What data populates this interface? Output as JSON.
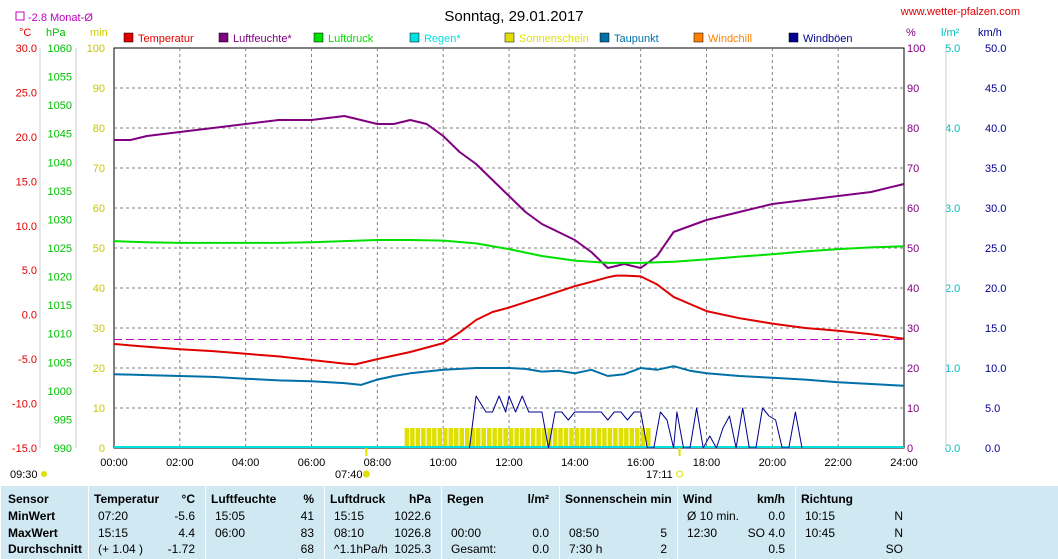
{
  "title": "Sonntag, 29.01.2017",
  "site": "www.wetter-pfalzen.com",
  "month_avg_label": "-2.8 Monat-Ø",
  "left_units": {
    "celsius": "°C",
    "hpa": "hPa",
    "min": "min"
  },
  "right_units": {
    "percent": "%",
    "lm2": "l/m²",
    "kmh": "km/h"
  },
  "legend": [
    {
      "label": "Temperatur",
      "color": "#e00000"
    },
    {
      "label": "Luftfeuchte*",
      "color": "#800080"
    },
    {
      "label": "Luftdruck",
      "color": "#00e000"
    },
    {
      "label": "Regen*",
      "color": "#00e0e0"
    },
    {
      "label": "Sonnenschein",
      "color": "#e0e000"
    },
    {
      "label": "Taupunkt",
      "color": "#0070a8"
    },
    {
      "label": "Windchill",
      "color": "#ff8000"
    },
    {
      "label": "Windböen",
      "color": "#000090"
    }
  ],
  "sun": {
    "sunrise": "07:40",
    "sunset": "17:11",
    "sun_hours_label": "09:30"
  },
  "chart_data": {
    "type": "line",
    "title": "Sonntag, 29.01.2017",
    "x_unit": "hour",
    "x_ticks": [
      "00:00",
      "02:00",
      "04:00",
      "06:00",
      "08:00",
      "10:00",
      "12:00",
      "14:00",
      "16:00",
      "18:00",
      "20:00",
      "22:00",
      "24:00"
    ],
    "axes": {
      "temp_c": {
        "ticks": [
          "30.0",
          "25.0",
          "20.0",
          "15.0",
          "10.0",
          "5.0",
          "0.0",
          "-5.0",
          "-10.0",
          "-15.0"
        ],
        "range": [
          -15,
          30
        ]
      },
      "pressure_hpa": {
        "ticks": [
          "1060",
          "1055",
          "1050",
          "1045",
          "1040",
          "1035",
          "1030",
          "1025",
          "1020",
          "1015",
          "1010",
          "1005",
          "1000",
          "995",
          "990"
        ],
        "range": [
          990,
          1060
        ]
      },
      "sunshine_min": {
        "ticks": [
          "100",
          "90",
          "80",
          "70",
          "60",
          "50",
          "40",
          "30",
          "20",
          "10",
          "0"
        ],
        "range": [
          0,
          100
        ]
      },
      "humidity_pct": {
        "ticks": [
          "100",
          "90",
          "80",
          "70",
          "60",
          "50",
          "40",
          "30",
          "20",
          "10",
          "0"
        ],
        "range": [
          0,
          100
        ]
      },
      "rain_lm2": {
        "ticks": [
          "5.0",
          "4.0",
          "3.0",
          "2.0",
          "1.0",
          "0.0"
        ],
        "range": [
          0,
          5
        ]
      },
      "wind_kmh": {
        "ticks": [
          "50.0",
          "45.0",
          "40.0",
          "35.0",
          "30.0",
          "25.0",
          "20.0",
          "15.0",
          "10.0",
          "5.0",
          "0.0"
        ],
        "range": [
          0,
          50
        ]
      }
    },
    "month_avg_temp": -2.8,
    "series": [
      {
        "name": "Temperatur",
        "axis": "temp_c",
        "color": "#e00000",
        "x": [
          0,
          1,
          2,
          3,
          4,
          5,
          6,
          7,
          7.33,
          8,
          9,
          10,
          10.5,
          11,
          11.5,
          12,
          12.5,
          13,
          13.5,
          14,
          14.5,
          15,
          15.25,
          15.5,
          16,
          16.5,
          17,
          17.5,
          18,
          19,
          20,
          21,
          22,
          23,
          24
        ],
        "y": [
          -3.3,
          -3.6,
          -3.9,
          -4.1,
          -4.4,
          -4.7,
          -5.1,
          -5.5,
          -5.6,
          -5.0,
          -4.2,
          -3.2,
          -2.0,
          -0.6,
          0.3,
          0.8,
          1.4,
          2.0,
          2.6,
          3.2,
          3.7,
          4.2,
          4.4,
          4.4,
          4.3,
          3.4,
          2.0,
          1.2,
          0.4,
          -0.4,
          -1.0,
          -1.5,
          -1.8,
          -2.2,
          -2.7
        ]
      },
      {
        "name": "Luftfeuchte*",
        "axis": "humidity_pct",
        "color": "#800080",
        "x": [
          0,
          0.5,
          1,
          2,
          3,
          4,
          5,
          6,
          7,
          7.5,
          8,
          8.5,
          9,
          9.5,
          10,
          10.5,
          11,
          11.5,
          12,
          12.5,
          13,
          13.5,
          14,
          14.5,
          15,
          15.5,
          16,
          16.5,
          17,
          18,
          19,
          20,
          21,
          22,
          23,
          24
        ],
        "y": [
          77,
          77,
          78,
          79,
          80,
          81,
          82,
          82,
          83,
          82,
          81,
          81,
          82,
          81,
          78,
          74,
          71,
          67,
          63,
          59,
          56,
          54,
          52,
          49,
          45,
          46,
          45,
          48,
          54,
          57,
          59,
          61,
          62,
          63,
          64,
          66
        ]
      },
      {
        "name": "Luftdruck",
        "axis": "pressure_hpa",
        "color": "#00e000",
        "x": [
          0,
          1,
          2,
          3,
          4,
          5,
          6,
          7,
          8,
          9,
          10,
          11,
          12,
          13,
          14,
          15,
          16,
          17,
          18,
          19,
          20,
          21,
          22,
          23,
          24
        ],
        "y": [
          1026.2,
          1026.0,
          1025.9,
          1025.9,
          1025.9,
          1025.9,
          1026.0,
          1026.2,
          1026.4,
          1026.4,
          1026.3,
          1025.8,
          1024.8,
          1023.6,
          1022.8,
          1022.4,
          1022.4,
          1022.6,
          1023.0,
          1023.5,
          1023.9,
          1024.4,
          1024.8,
          1025.1,
          1025.3
        ]
      },
      {
        "name": "Taupunkt",
        "axis": "temp_c",
        "color": "#0070a8",
        "x": [
          0,
          1,
          2,
          3,
          4,
          5,
          6,
          7,
          7.5,
          8,
          8.5,
          9,
          10,
          11,
          12,
          12.5,
          13,
          13.5,
          14,
          14.5,
          15,
          15.5,
          16,
          16.5,
          17,
          17.5,
          18,
          19,
          20,
          21,
          22,
          23,
          24
        ],
        "y": [
          -6.7,
          -6.8,
          -6.9,
          -7.0,
          -7.2,
          -7.4,
          -7.5,
          -7.7,
          -7.9,
          -7.3,
          -6.9,
          -6.6,
          -6.2,
          -6.0,
          -6.0,
          -6.1,
          -6.4,
          -6.3,
          -6.6,
          -6.2,
          -6.9,
          -6.7,
          -6.0,
          -6.2,
          -5.8,
          -6.3,
          -6.6,
          -6.9,
          -7.1,
          -7.3,
          -7.6,
          -7.8,
          -8.0
        ]
      },
      {
        "name": "Windböen",
        "axis": "wind_kmh",
        "color": "#000090",
        "x": [
          10.8,
          11,
          11.3,
          11.5,
          11.7,
          11.9,
          12,
          12.2,
          12.4,
          12.6,
          12.8,
          13,
          13.2,
          13.4,
          13.6,
          13.8,
          14,
          14.2,
          14.4,
          14.6,
          14.8,
          15,
          15.2,
          15.4,
          15.6,
          15.8,
          16,
          16.2,
          16.4,
          16.6,
          16.8,
          17,
          17.1,
          17.3,
          17.5,
          17.7,
          17.9,
          18.1,
          18.3,
          18.5,
          18.7,
          18.9,
          19.1,
          19.3,
          19.5,
          19.7,
          19.9,
          20.1,
          20.3,
          20.5,
          20.7,
          20.9
        ],
        "y": [
          0,
          6.5,
          4.5,
          4.5,
          6.5,
          4.5,
          6.5,
          4.5,
          6.5,
          4.5,
          4.5,
          4.5,
          0,
          4.5,
          4.5,
          3.5,
          4.5,
          4.5,
          4.5,
          4.5,
          4.5,
          3.5,
          4.5,
          4.5,
          3.5,
          4.5,
          4.5,
          0,
          0,
          4.5,
          3.5,
          0,
          4.5,
          0,
          0,
          5.0,
          0,
          1.5,
          0,
          2.5,
          4.0,
          0,
          5.0,
          0,
          0,
          5.0,
          4.0,
          3.5,
          0,
          0,
          4.5,
          0
        ]
      }
    ],
    "sunshine": {
      "name": "Sonnenschein",
      "axis": "sunshine_min",
      "color": "#e0e000",
      "x_start": 8.83,
      "x_end": 16.17,
      "minutes_per_10": 5
    },
    "rain": {
      "name": "Regen*",
      "axis": "rain_lm2",
      "color": "#00e0e0",
      "value": 0.0
    }
  },
  "table": {
    "headers": {
      "sensor": "Sensor",
      "temp": "Temperatur",
      "temp_unit": "°C",
      "hum": "Luftfeuchte",
      "hum_unit": "%",
      "press": "Luftdruck",
      "press_unit": "hPa",
      "rain": "Regen",
      "rain_unit": "l/m²",
      "sun": "Sonnenschein min",
      "wind": "Wind",
      "wind_unit": "km/h",
      "dir": "Richtung"
    },
    "rows": [
      {
        "label": "MinWert",
        "temp_t": "07:20",
        "temp_v": "-5.6",
        "hum_t": "15:05",
        "hum_v": "41",
        "press_t": "15:15",
        "press_v": "1022.6",
        "rain_t": "",
        "rain_v": "",
        "sun_t": "",
        "sun_v": "",
        "wind_t": "Ø 10 min.",
        "wind_v": "0.0",
        "dir_t": "10:15",
        "dir_v": "N"
      },
      {
        "label": "MaxWert",
        "temp_t": "15:15",
        "temp_v": "4.4",
        "hum_t": "06:00",
        "hum_v": "83",
        "press_t": "08:10",
        "press_v": "1026.8",
        "rain_t": "00:00",
        "rain_v": "0.0",
        "sun_t": "08:50",
        "sun_v": "5",
        "wind_t": "12:30",
        "wind_v": "SO 4.0",
        "dir_t": "10:45",
        "dir_v": "N"
      },
      {
        "label": "Durchschnitt",
        "temp_t": "(+ 1.04 )",
        "temp_v": "-1.72",
        "hum_t": "",
        "hum_v": "68",
        "press_t": "^1.1hPa/h",
        "press_v": "1025.3",
        "rain_t": "Gesamt:",
        "rain_v": "0.0",
        "sun_t": "7:30 h",
        "sun_v": "2",
        "wind_t": "",
        "wind_v": "0.5",
        "dir_t": "",
        "dir_v": "SO"
      }
    ]
  }
}
